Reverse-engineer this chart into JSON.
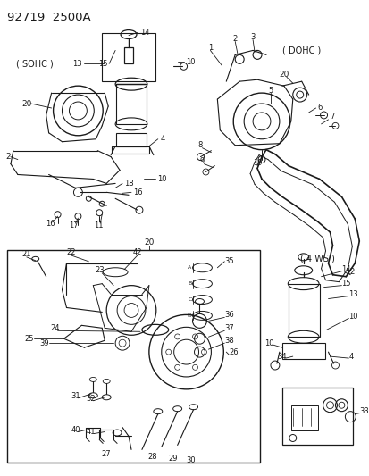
{
  "title": "92719  2500A",
  "bg": "#f5f5f5",
  "lc": "#1a1a1a",
  "tc": "#1a1a1a",
  "figsize": [
    4.14,
    5.33
  ],
  "dpi": 100,
  "sohc_label": "( SOHC )",
  "dohc_label": "( DOHC )",
  "ws4_label": "( 4 WS )"
}
